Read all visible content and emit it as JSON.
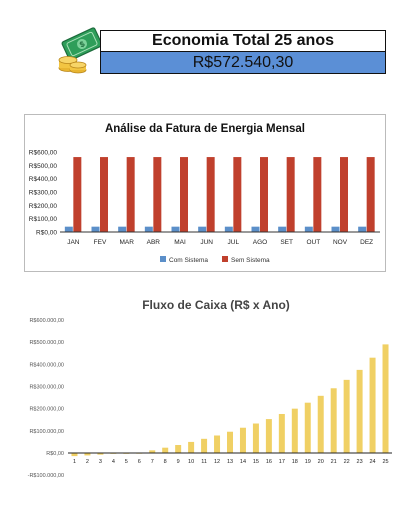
{
  "header": {
    "title": "Economia Total 25 anos",
    "total": "R$572.540,30"
  },
  "colors": {
    "com_sistema": "#5b8fc9",
    "sem_sistema": "#c0402d",
    "fluxo": "#f0d064",
    "total_box": "#5b8fd6"
  },
  "chart_data": [
    {
      "type": "bar",
      "title": "Análise da Fatura de Energia Mensal",
      "categories": [
        "JAN",
        "FEV",
        "MAR",
        "ABR",
        "MAI",
        "JUN",
        "JUL",
        "AGO",
        "SET",
        "OUT",
        "NOV",
        "DEZ"
      ],
      "ytick_labels": [
        "R$0,00",
        "R$100,00",
        "R$200,00",
        "R$300,00",
        "R$400,00",
        "R$500,00",
        "R$600,00"
      ],
      "ylim": [
        0,
        600
      ],
      "series": [
        {
          "name": "Com Sistema",
          "values": [
            40,
            40,
            40,
            40,
            40,
            40,
            40,
            40,
            40,
            40,
            40,
            40
          ]
        },
        {
          "name": "Sem Sistema",
          "values": [
            562,
            562,
            562,
            562,
            562,
            562,
            562,
            562,
            562,
            562,
            562,
            562
          ]
        }
      ],
      "legend": "bottom",
      "grid": false
    },
    {
      "type": "bar",
      "title": "Fluxo de Caixa (R$ x Ano)",
      "categories": [
        "1",
        "2",
        "3",
        "4",
        "5",
        "6",
        "7",
        "8",
        "9",
        "10",
        "11",
        "12",
        "13",
        "14",
        "15",
        "16",
        "17",
        "18",
        "19",
        "20",
        "21",
        "22",
        "23",
        "24",
        "25"
      ],
      "ytick_labels": [
        "-R$100.000,00",
        "R$0,00",
        "R$100.000,00",
        "R$200.000,00",
        "R$300.000,00",
        "R$400.000,00",
        "R$500.000,00",
        "R$600.000,00"
      ],
      "ylim": [
        -100000,
        600000
      ],
      "values": [
        -14000,
        -11000,
        -7500,
        -3000,
        -500,
        500,
        12000,
        24000,
        36000,
        50000,
        64000,
        79000,
        96000,
        114000,
        133000,
        153000,
        176000,
        200000,
        227000,
        258000,
        292000,
        330000,
        375000,
        430000,
        490000
      ],
      "grid": false
    }
  ]
}
